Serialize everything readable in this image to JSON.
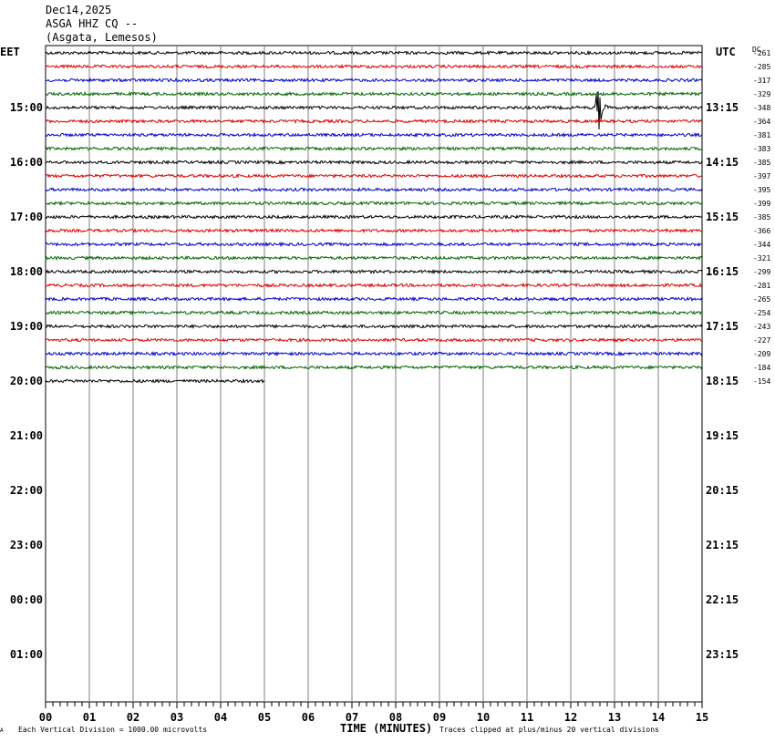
{
  "header": {
    "date": "Dec14,2025",
    "station": "ASGA HHZ CQ --",
    "location": "(Asgata, Lemesos)"
  },
  "left_tz": "EET",
  "right_tz": "UTC",
  "dc_label": "DC",
  "footer": {
    "scale": "Each Vertical Division = 1000.00 microvolts",
    "clip": "Traces clipped at plus/minus 20 vertical divisions",
    "corner_mark": "A"
  },
  "chart_data": {
    "type": "line",
    "title": "Dec14,2025 ASGA HHZ CQ -- (Asgata, Lemesos)",
    "xlabel": "TIME (MINUTES)",
    "ylabel": "",
    "xlim": [
      0,
      15
    ],
    "x_ticks": [
      "00",
      "01",
      "02",
      "03",
      "04",
      "05",
      "06",
      "07",
      "08",
      "09",
      "10",
      "11",
      "12",
      "13",
      "14",
      "15"
    ],
    "left_hour_labels": [
      "15:00",
      "16:00",
      "17:00",
      "18:00",
      "19:00",
      "20:00",
      "21:00",
      "22:00",
      "23:00",
      "00:00",
      "01:00"
    ],
    "right_hour_labels": [
      "13:15",
      "14:15",
      "15:15",
      "16:15",
      "17:15",
      "18:15",
      "19:15",
      "20:15",
      "21:15",
      "22:15",
      "23:15"
    ],
    "trace_colors": [
      "#000000",
      "#dd0000",
      "#0000cc",
      "#006600"
    ],
    "trace_dc_offsets": [
      -261,
      -285,
      -317,
      -329,
      -348,
      -364,
      -381,
      -383,
      -385,
      -397,
      -395,
      -399,
      -385,
      -366,
      -344,
      -321,
      -299,
      -281,
      -265,
      -254,
      -243,
      -227,
      -209,
      -184,
      -154
    ],
    "last_trace_end_minute": 5,
    "event": {
      "trace_index": 4,
      "start_minute": 12.55,
      "end_minute": 12.85,
      "peak_minute": 12.63
    },
    "grid": true
  }
}
